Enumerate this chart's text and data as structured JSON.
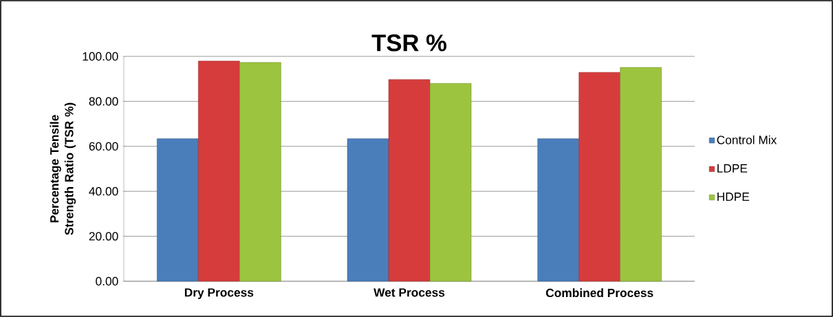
{
  "chart_data": {
    "type": "bar",
    "title": "TSR %",
    "ylabel": "Percentage Tensile Strength Ratio (TSR %)",
    "categories": [
      "Dry Process",
      "Wet Process",
      "Combined Process"
    ],
    "series": [
      {
        "name": "Control Mix",
        "color": "#4a7ebb",
        "values": [
          63.4,
          63.4,
          63.4
        ]
      },
      {
        "name": "LDPE",
        "color": "#d63c3c",
        "values": [
          97.9,
          89.7,
          92.9
        ]
      },
      {
        "name": "HDPE",
        "color": "#9dc43f",
        "values": [
          97.3,
          88.0,
          95.1
        ]
      }
    ],
    "ylim": [
      0,
      100
    ],
    "yticks": [
      {
        "value": 0,
        "label": "0.00"
      },
      {
        "value": 20,
        "label": "20.00"
      },
      {
        "value": 40,
        "label": "40.00"
      },
      {
        "value": 60,
        "label": "60.00"
      },
      {
        "value": 80,
        "label": "80.00"
      },
      {
        "value": 100,
        "label": "100.00"
      }
    ],
    "grid": "y",
    "legend": "right"
  }
}
